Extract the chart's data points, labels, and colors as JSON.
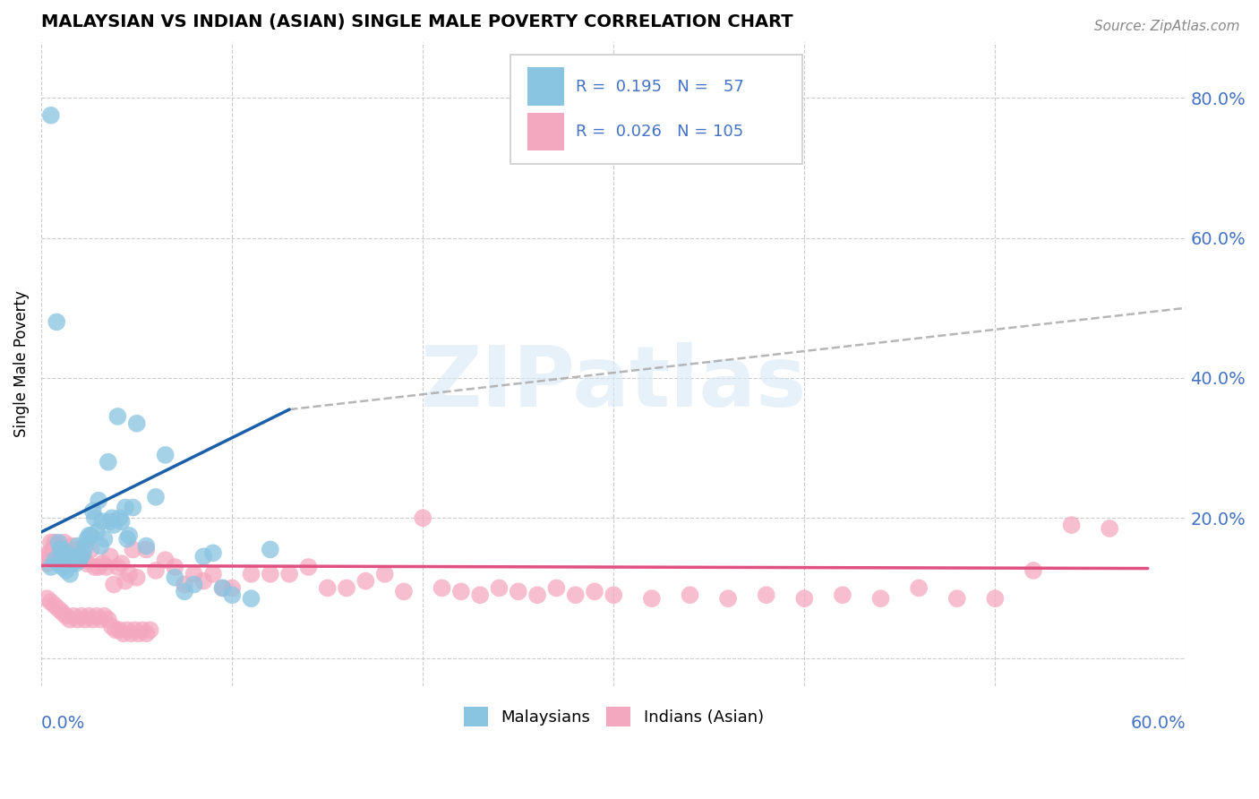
{
  "title": "MALAYSIAN VS INDIAN (ASIAN) SINGLE MALE POVERTY CORRELATION CHART",
  "source": "Source: ZipAtlas.com",
  "ylabel": "Single Male Poverty",
  "ytick_vals": [
    0.0,
    0.2,
    0.4,
    0.6,
    0.8
  ],
  "ytick_labels": [
    "",
    "20.0%",
    "40.0%",
    "60.0%",
    "80.0%"
  ],
  "xlim": [
    0.0,
    0.6
  ],
  "ylim": [
    -0.04,
    0.88
  ],
  "legend_R1": "0.195",
  "legend_N1": "57",
  "legend_R2": "0.026",
  "legend_N2": "105",
  "blue_dot_color": "#89c4e1",
  "pink_dot_color": "#f4a8c0",
  "blue_line_color": "#1a5fa8",
  "pink_line_color": "#e05080",
  "dash_color": "#aaaaaa",
  "watermark_color": "#d6e8f5",
  "blue_line_x0": 0.0,
  "blue_line_y0": 0.18,
  "blue_line_x1": 0.13,
  "blue_line_y1": 0.355,
  "pink_line_x0": 0.0,
  "pink_line_y0": 0.132,
  "pink_line_x1": 0.58,
  "pink_line_y1": 0.128,
  "dash_line_x0": 0.13,
  "dash_line_y0": 0.355,
  "dash_line_x1": 0.6,
  "dash_line_y1": 0.5,
  "mal_x": [
    0.005,
    0.008,
    0.009,
    0.01,
    0.011,
    0.012,
    0.013,
    0.014,
    0.015,
    0.016,
    0.017,
    0.018,
    0.019,
    0.02,
    0.021,
    0.022,
    0.023,
    0.024,
    0.025,
    0.026,
    0.027,
    0.028,
    0.029,
    0.03,
    0.031,
    0.032,
    0.033,
    0.035,
    0.036,
    0.037,
    0.038,
    0.04,
    0.041,
    0.042,
    0.044,
    0.045,
    0.046,
    0.048,
    0.05,
    0.055,
    0.06,
    0.065,
    0.07,
    0.075,
    0.08,
    0.085,
    0.09,
    0.095,
    0.1,
    0.11,
    0.12,
    0.005,
    0.007,
    0.009,
    0.011,
    0.013,
    0.015
  ],
  "mal_y": [
    0.775,
    0.48,
    0.165,
    0.155,
    0.155,
    0.15,
    0.145,
    0.14,
    0.14,
    0.135,
    0.145,
    0.135,
    0.16,
    0.14,
    0.145,
    0.15,
    0.16,
    0.17,
    0.175,
    0.175,
    0.21,
    0.2,
    0.18,
    0.225,
    0.16,
    0.195,
    0.17,
    0.28,
    0.195,
    0.2,
    0.19,
    0.345,
    0.2,
    0.195,
    0.215,
    0.17,
    0.175,
    0.215,
    0.335,
    0.16,
    0.23,
    0.29,
    0.115,
    0.095,
    0.105,
    0.145,
    0.15,
    0.1,
    0.09,
    0.085,
    0.155,
    0.13,
    0.14,
    0.135,
    0.13,
    0.125,
    0.12
  ],
  "ind_x": [
    0.002,
    0.003,
    0.004,
    0.005,
    0.006,
    0.007,
    0.008,
    0.009,
    0.01,
    0.011,
    0.012,
    0.013,
    0.014,
    0.015,
    0.016,
    0.017,
    0.018,
    0.019,
    0.02,
    0.022,
    0.024,
    0.026,
    0.028,
    0.03,
    0.032,
    0.034,
    0.036,
    0.038,
    0.04,
    0.042,
    0.044,
    0.046,
    0.048,
    0.05,
    0.055,
    0.06,
    0.065,
    0.07,
    0.075,
    0.08,
    0.085,
    0.09,
    0.095,
    0.1,
    0.11,
    0.12,
    0.13,
    0.14,
    0.15,
    0.16,
    0.17,
    0.18,
    0.19,
    0.2,
    0.21,
    0.22,
    0.23,
    0.24,
    0.25,
    0.26,
    0.27,
    0.28,
    0.29,
    0.3,
    0.32,
    0.34,
    0.36,
    0.38,
    0.4,
    0.42,
    0.44,
    0.46,
    0.48,
    0.5,
    0.52,
    0.54,
    0.56,
    0.003,
    0.005,
    0.007,
    0.009,
    0.011,
    0.013,
    0.015,
    0.017,
    0.019,
    0.021,
    0.023,
    0.025,
    0.027,
    0.029,
    0.031,
    0.033,
    0.035,
    0.037,
    0.039,
    0.041,
    0.043,
    0.045,
    0.047,
    0.049,
    0.051,
    0.053,
    0.055,
    0.057
  ],
  "ind_y": [
    0.145,
    0.135,
    0.15,
    0.165,
    0.155,
    0.165,
    0.16,
    0.155,
    0.15,
    0.145,
    0.165,
    0.155,
    0.145,
    0.15,
    0.16,
    0.15,
    0.145,
    0.14,
    0.155,
    0.14,
    0.135,
    0.155,
    0.13,
    0.13,
    0.135,
    0.13,
    0.145,
    0.105,
    0.13,
    0.135,
    0.11,
    0.12,
    0.155,
    0.115,
    0.155,
    0.125,
    0.14,
    0.13,
    0.105,
    0.12,
    0.11,
    0.12,
    0.1,
    0.1,
    0.12,
    0.12,
    0.12,
    0.13,
    0.1,
    0.1,
    0.11,
    0.12,
    0.095,
    0.2,
    0.1,
    0.095,
    0.09,
    0.1,
    0.095,
    0.09,
    0.1,
    0.09,
    0.095,
    0.09,
    0.085,
    0.09,
    0.085,
    0.09,
    0.085,
    0.09,
    0.085,
    0.1,
    0.085,
    0.085,
    0.125,
    0.19,
    0.185,
    0.085,
    0.08,
    0.075,
    0.07,
    0.065,
    0.06,
    0.055,
    0.06,
    0.055,
    0.06,
    0.055,
    0.06,
    0.055,
    0.06,
    0.055,
    0.06,
    0.055,
    0.045,
    0.04,
    0.04,
    0.035,
    0.04,
    0.035,
    0.04,
    0.035,
    0.04,
    0.035,
    0.04
  ]
}
